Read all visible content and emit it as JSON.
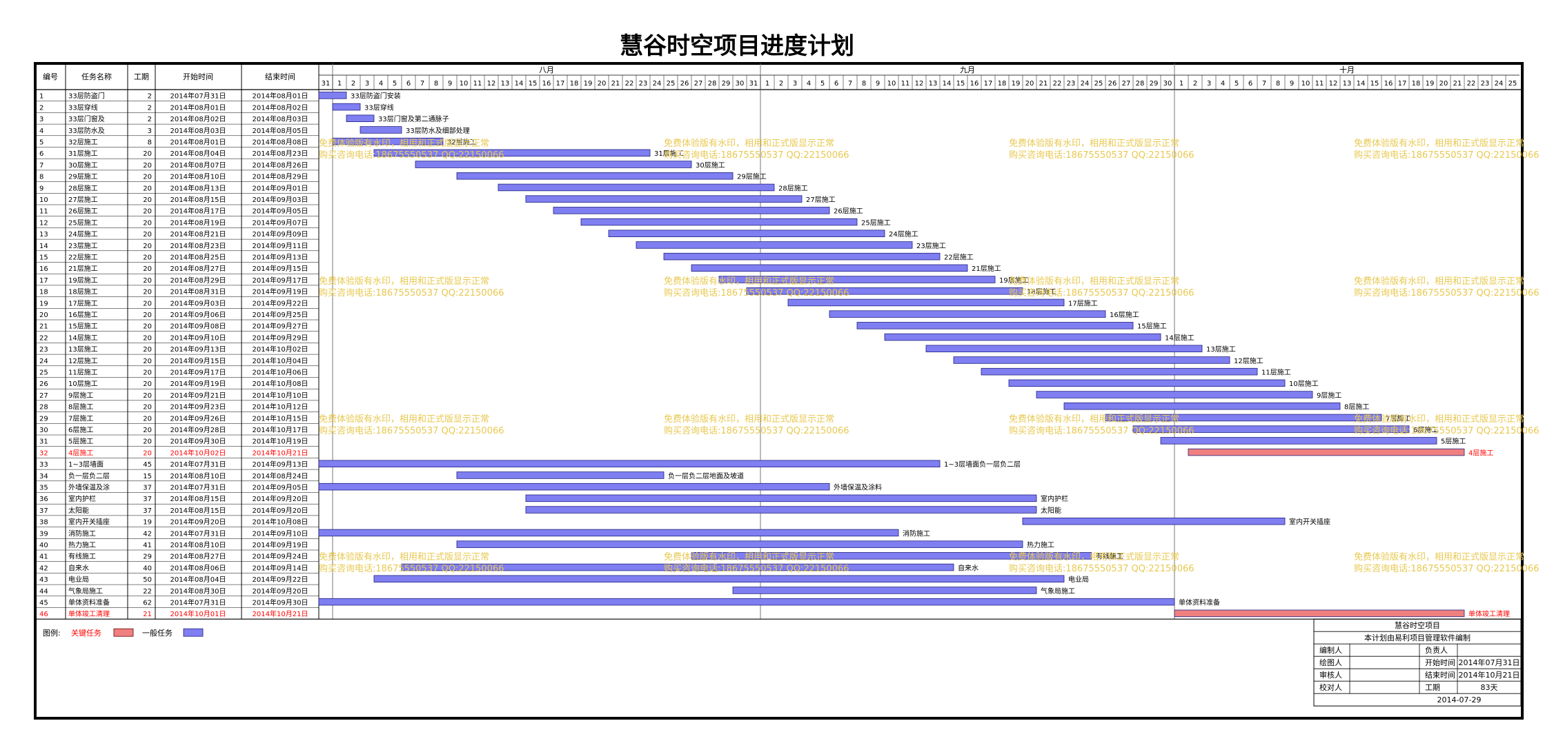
{
  "chart_data": {
    "type": "gantt",
    "title": "慧谷时空项目进度计划",
    "columns": [
      "编号",
      "任务名称",
      "工期",
      "开始时间",
      "结束时间"
    ],
    "timeline": {
      "start_date": "2014-07-31",
      "end_date": "2014-10-25",
      "months": [
        {
          "label": "八月",
          "start": "2014-08-01",
          "end": "2014-08-31"
        },
        {
          "label": "九月",
          "start": "2014-09-01",
          "end": "2014-09-30"
        },
        {
          "label": "十月",
          "start": "2014-10-01",
          "end": "2014-10-25"
        }
      ]
    },
    "colors": {
      "critical": "#f08080",
      "normal": "#7f7ff2",
      "critical_text": "#ff0000",
      "watermark": "#e8c850"
    },
    "tasks": [
      {
        "id": "1",
        "name": "33层防盗门安装",
        "duration": "2",
        "start": "2014年07月31日",
        "end": "2014年08月01日",
        "bar_label": "33层防盗门安装",
        "critical": false
      },
      {
        "id": "2",
        "name": "33层穿线",
        "duration": "2",
        "start": "2014年08月01日",
        "end": "2014年08月02日",
        "bar_label": "33层穿线",
        "critical": false
      },
      {
        "id": "3",
        "name": "33层门窗及第二通脉子",
        "duration": "2",
        "start": "2014年08月02日",
        "end": "2014年08月03日",
        "bar_label": "33层门窗及第二通脉子",
        "critical": false
      },
      {
        "id": "4",
        "name": "33层防水及细部处理",
        "duration": "3",
        "start": "2014年08月03日",
        "end": "2014年08月05日",
        "bar_label": "33层防水及细部处理",
        "critical": false
      },
      {
        "id": "5",
        "name": "32层施工",
        "duration": "8",
        "start": "2014年08月01日",
        "end": "2014年08月08日",
        "bar_label": "32层施工",
        "critical": false
      },
      {
        "id": "6",
        "name": "31层施工",
        "duration": "20",
        "start": "2014年08月04日",
        "end": "2014年08月23日",
        "bar_label": "31层施工",
        "critical": false
      },
      {
        "id": "7",
        "name": "30层施工",
        "duration": "20",
        "start": "2014年08月07日",
        "end": "2014年08月26日",
        "bar_label": "30层施工",
        "critical": false
      },
      {
        "id": "8",
        "name": "29层施工",
        "duration": "20",
        "start": "2014年08月10日",
        "end": "2014年08月29日",
        "bar_label": "29层施工",
        "critical": false
      },
      {
        "id": "9",
        "name": "28层施工",
        "duration": "20",
        "start": "2014年08月13日",
        "end": "2014年09月01日",
        "bar_label": "28层施工",
        "critical": false
      },
      {
        "id": "10",
        "name": "27层施工",
        "duration": "20",
        "start": "2014年08月15日",
        "end": "2014年09月03日",
        "bar_label": "27层施工",
        "critical": false
      },
      {
        "id": "11",
        "name": "26层施工",
        "duration": "20",
        "start": "2014年08月17日",
        "end": "2014年09月05日",
        "bar_label": "26层施工",
        "critical": false
      },
      {
        "id": "12",
        "name": "25层施工",
        "duration": "20",
        "start": "2014年08月19日",
        "end": "2014年09月07日",
        "bar_label": "25层施工",
        "critical": false
      },
      {
        "id": "13",
        "name": "24层施工",
        "duration": "20",
        "start": "2014年08月21日",
        "end": "2014年09月09日",
        "bar_label": "24层施工",
        "critical": false
      },
      {
        "id": "14",
        "name": "23层施工",
        "duration": "20",
        "start": "2014年08月23日",
        "end": "2014年09月11日",
        "bar_label": "23层施工",
        "critical": false
      },
      {
        "id": "15",
        "name": "22层施工",
        "duration": "20",
        "start": "2014年08月25日",
        "end": "2014年09月13日",
        "bar_label": "22层施工",
        "critical": false
      },
      {
        "id": "16",
        "name": "21层施工",
        "duration": "20",
        "start": "2014年08月27日",
        "end": "2014年09月15日",
        "bar_label": "21层施工",
        "critical": false
      },
      {
        "id": "17",
        "name": "19层施工",
        "duration": "20",
        "start": "2014年08月29日",
        "end": "2014年09月17日",
        "bar_label": "19层施工",
        "critical": false
      },
      {
        "id": "18",
        "name": "18层施工",
        "duration": "20",
        "start": "2014年08月31日",
        "end": "2014年09月19日",
        "bar_label": "18层施工",
        "critical": false
      },
      {
        "id": "19",
        "name": "17层施工",
        "duration": "20",
        "start": "2014年09月03日",
        "end": "2014年09月22日",
        "bar_label": "17层施工",
        "critical": false
      },
      {
        "id": "20",
        "name": "16层施工",
        "duration": "20",
        "start": "2014年09月06日",
        "end": "2014年09月25日",
        "bar_label": "16层施工",
        "critical": false
      },
      {
        "id": "21",
        "name": "15层施工",
        "duration": "20",
        "start": "2014年09月08日",
        "end": "2014年09月27日",
        "bar_label": "15层施工",
        "critical": false
      },
      {
        "id": "22",
        "name": "14层施工",
        "duration": "20",
        "start": "2014年09月10日",
        "end": "2014年09月29日",
        "bar_label": "14层施工",
        "critical": false
      },
      {
        "id": "23",
        "name": "13层施工",
        "duration": "20",
        "start": "2014年09月13日",
        "end": "2014年10月02日",
        "bar_label": "13层施工",
        "critical": false
      },
      {
        "id": "24",
        "name": "12层施工",
        "duration": "20",
        "start": "2014年09月15日",
        "end": "2014年10月04日",
        "bar_label": "12层施工",
        "critical": false
      },
      {
        "id": "25",
        "name": "11层施工",
        "duration": "20",
        "start": "2014年09月17日",
        "end": "2014年10月06日",
        "bar_label": "11层施工",
        "critical": false
      },
      {
        "id": "26",
        "name": "10层施工",
        "duration": "20",
        "start": "2014年09月19日",
        "end": "2014年10月08日",
        "bar_label": "10层施工",
        "critical": false
      },
      {
        "id": "27",
        "name": "9层施工",
        "duration": "20",
        "start": "2014年09月21日",
        "end": "2014年10月10日",
        "bar_label": "9层施工",
        "critical": false
      },
      {
        "id": "28",
        "name": "8层施工",
        "duration": "20",
        "start": "2014年09月23日",
        "end": "2014年10月12日",
        "bar_label": "8层施工",
        "critical": false
      },
      {
        "id": "29",
        "name": "7层施工",
        "duration": "20",
        "start": "2014年09月26日",
        "end": "2014年10月15日",
        "bar_label": "7层施工",
        "critical": false
      },
      {
        "id": "30",
        "name": "6层施工",
        "duration": "20",
        "start": "2014年09月28日",
        "end": "2014年10月17日",
        "bar_label": "6层施工",
        "critical": false
      },
      {
        "id": "31",
        "name": "5层施工",
        "duration": "20",
        "start": "2014年09月30日",
        "end": "2014年10月19日",
        "bar_label": "5层施工",
        "critical": false
      },
      {
        "id": "32",
        "name": "4层施工",
        "duration": "20",
        "start": "2014年10月02日",
        "end": "2014年10月21日",
        "bar_label": "4层施工",
        "critical": true
      },
      {
        "id": "33",
        "name": "1~3层墙面负一层负二层",
        "duration": "45",
        "start": "2014年07月31日",
        "end": "2014年09月13日",
        "bar_label": "1~3层墙面负一层负二层",
        "critical": false
      },
      {
        "id": "34",
        "name": "负一层负二层地面及坡道",
        "duration": "15",
        "start": "2014年08月10日",
        "end": "2014年08月24日",
        "bar_label": "负一层负二层地面及坡道",
        "critical": false
      },
      {
        "id": "35",
        "name": "外墙保温及涂料",
        "duration": "37",
        "start": "2014年07月31日",
        "end": "2014年09月05日",
        "bar_label": "外墙保温及涂料",
        "critical": false
      },
      {
        "id": "36",
        "name": "室内护栏",
        "duration": "37",
        "start": "2014年08月15日",
        "end": "2014年09月20日",
        "bar_label": "室内护栏",
        "critical": false
      },
      {
        "id": "37",
        "name": "太阳能",
        "duration": "37",
        "start": "2014年08月15日",
        "end": "2014年09月20日",
        "bar_label": "太阳能",
        "critical": false
      },
      {
        "id": "38",
        "name": "室内开关插座",
        "duration": "19",
        "start": "2014年09月20日",
        "end": "2014年10月08日",
        "bar_label": "室内开关插座",
        "critical": false
      },
      {
        "id": "39",
        "name": "消防施工",
        "duration": "42",
        "start": "2014年07月31日",
        "end": "2014年09月10日",
        "bar_label": "消防施工",
        "critical": false
      },
      {
        "id": "40",
        "name": "热力施工",
        "duration": "41",
        "start": "2014年08月10日",
        "end": "2014年09月19日",
        "bar_label": "热力施工",
        "critical": false
      },
      {
        "id": "41",
        "name": "有线施工",
        "duration": "29",
        "start": "2014年08月27日",
        "end": "2014年09月24日",
        "bar_label": "有线施工",
        "critical": false
      },
      {
        "id": "42",
        "name": "自来水",
        "duration": "40",
        "start": "2014年08月06日",
        "end": "2014年09月14日",
        "bar_label": "自来水",
        "critical": false
      },
      {
        "id": "43",
        "name": "电业局",
        "duration": "50",
        "start": "2014年08月04日",
        "end": "2014年09月22日",
        "bar_label": "电业局",
        "critical": false
      },
      {
        "id": "44",
        "name": "气象局施工",
        "duration": "22",
        "start": "2014年08月30日",
        "end": "2014年09月20日",
        "bar_label": "气象局施工",
        "critical": false
      },
      {
        "id": "45",
        "name": "单体资料准备",
        "duration": "62",
        "start": "2014年07月31日",
        "end": "2014年09月30日",
        "bar_label": "单体资料准备",
        "critical": false
      },
      {
        "id": "46",
        "name": "单体竣工清理",
        "duration": "21",
        "start": "2014年10月01日",
        "end": "2014年10月21日",
        "bar_label": "单体竣工清理",
        "critical": true
      }
    ],
    "legend": {
      "title": "图例:",
      "critical_label": "关键任务",
      "normal_label": "一般任务"
    },
    "watermark": {
      "line1": "免费体验版有水印，相用和正式版显示正常",
      "line2": "购买咨询电话:18675550537 QQ:22150066"
    },
    "info_block": {
      "project": "慧谷时空项目",
      "subtitle": "本计划由易利项目管理软件编制",
      "rows": [
        {
          "k1": "编制人",
          "v1": "",
          "k2": "负责人",
          "v2": ""
        },
        {
          "k1": "绘图人",
          "v1": "",
          "k2": "开始时间",
          "v2": "2014年07月31日"
        },
        {
          "k1": "审核人",
          "v1": "",
          "k2": "结束时间",
          "v2": "2014年10月21日"
        },
        {
          "k1": "校对人",
          "v1": "",
          "k2": "工期",
          "v2": "83天"
        }
      ],
      "date": "2014-07-29"
    }
  }
}
